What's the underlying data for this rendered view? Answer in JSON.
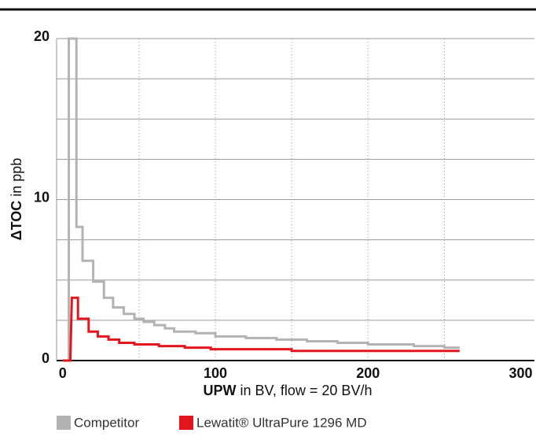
{
  "chart_data": {
    "type": "line",
    "x_label": {
      "bold": "UPW",
      "rest": " in BV, flow = 20 BV/h"
    },
    "y_label": {
      "bold": "ΔTOC",
      "rest": " in ppb"
    },
    "xlim": [
      -4,
      309
    ],
    "ylim": [
      0,
      20
    ],
    "xticks": [
      0,
      100,
      200,
      300
    ],
    "yticks": [
      0,
      10,
      20
    ],
    "y_gridlines": [
      0,
      2.5,
      5,
      7.5,
      10,
      12.5,
      15,
      17.5,
      20
    ],
    "x_gridlines": [
      50,
      100,
      150,
      200,
      250
    ],
    "series": [
      {
        "name": "Competitor",
        "color": "#b3b3b3",
        "x": [
          0,
          4,
          4,
          9,
          9,
          13,
          13,
          20,
          20,
          27,
          27,
          33,
          33,
          40,
          40,
          47,
          47,
          53,
          53,
          60,
          60,
          67,
          67,
          73,
          73,
          87,
          87,
          100,
          100,
          120,
          120,
          140,
          140,
          160,
          160,
          180,
          180,
          200,
          200,
          230,
          230,
          250,
          250,
          260
        ],
        "values": [
          0,
          0,
          20,
          20,
          8.3,
          8.3,
          6.2,
          6.2,
          4.9,
          4.9,
          3.9,
          3.9,
          3.3,
          3.3,
          2.9,
          2.9,
          2.6,
          2.6,
          2.4,
          2.4,
          2.2,
          2.2,
          2.0,
          2.0,
          1.8,
          1.8,
          1.7,
          1.7,
          1.5,
          1.5,
          1.4,
          1.4,
          1.3,
          1.3,
          1.2,
          1.2,
          1.1,
          1.1,
          1.0,
          1.0,
          0.9,
          0.9,
          0.8,
          0.8
        ]
      },
      {
        "name": "Lewatit® UltraPure 1296 MD",
        "color": "#e3161d",
        "x": [
          0,
          5,
          6,
          10,
          10,
          17,
          17,
          23,
          23,
          30,
          30,
          37,
          37,
          47,
          47,
          63,
          63,
          80,
          80,
          97,
          97,
          150,
          150,
          260
        ],
        "values": [
          0,
          0,
          3.9,
          3.9,
          2.6,
          2.6,
          1.8,
          1.8,
          1.5,
          1.5,
          1.3,
          1.3,
          1.1,
          1.1,
          1.0,
          1.0,
          0.9,
          0.9,
          0.8,
          0.8,
          0.7,
          0.7,
          0.6,
          0.6
        ]
      }
    ]
  }
}
